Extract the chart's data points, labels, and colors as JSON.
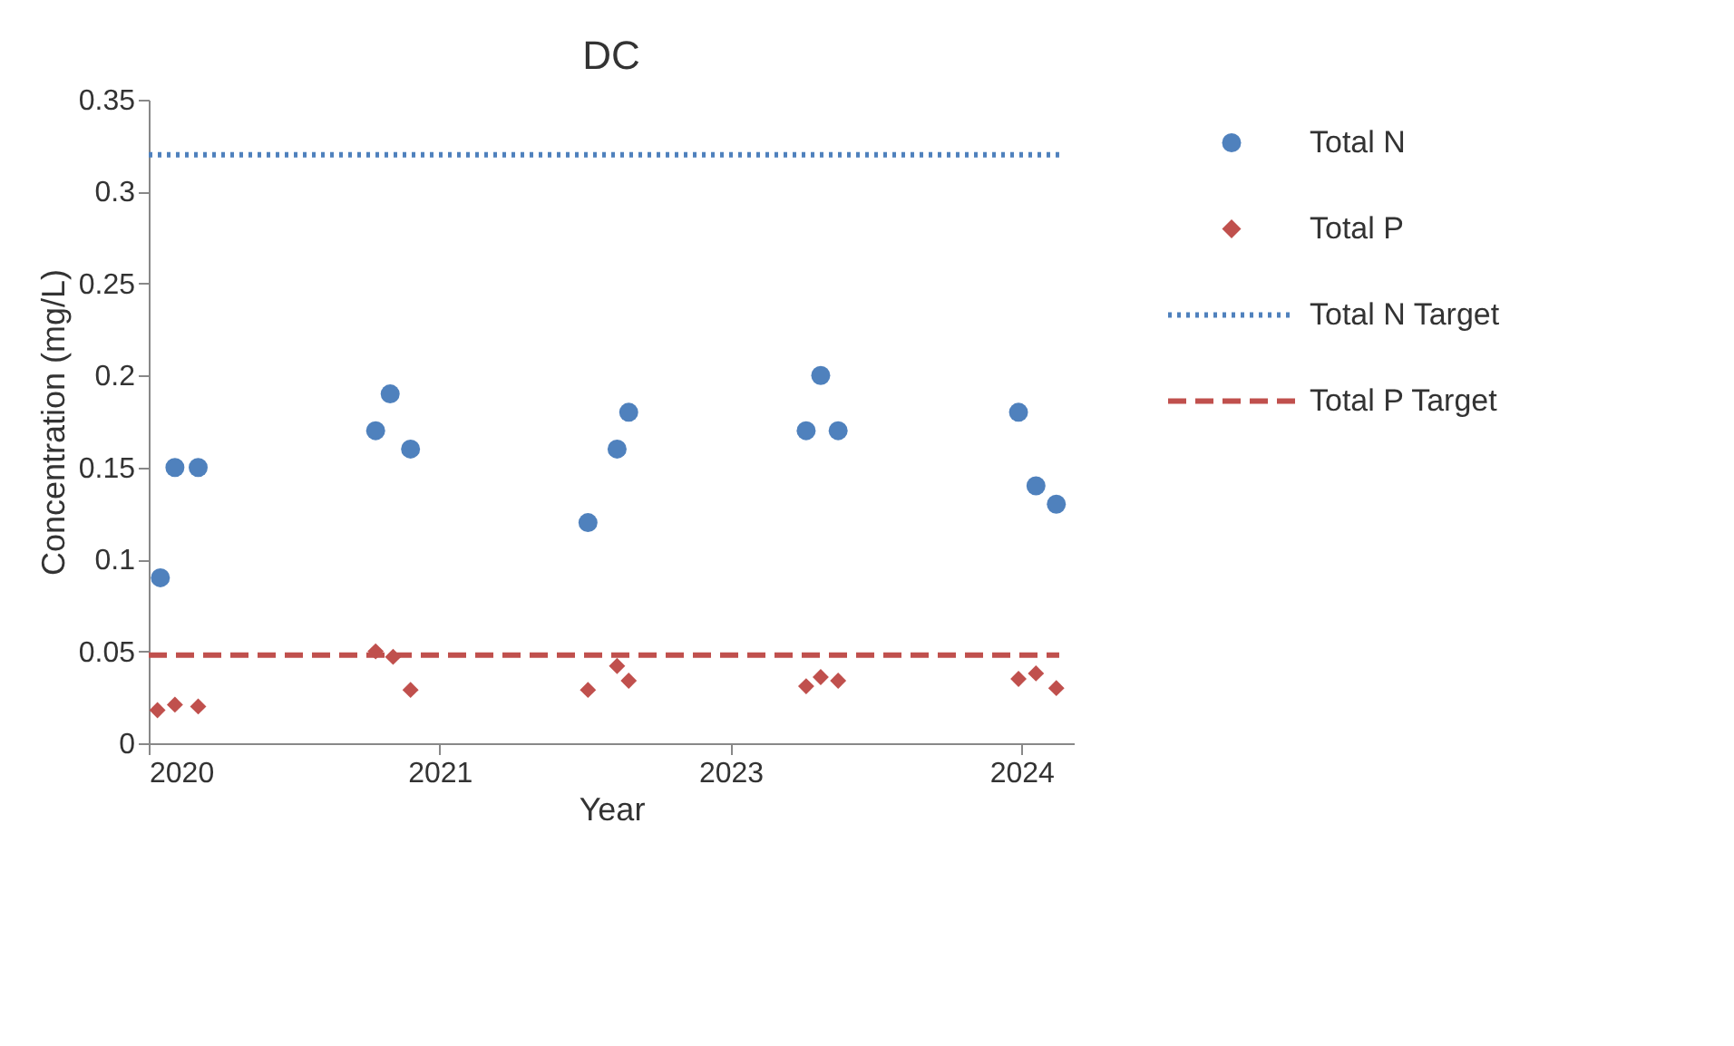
{
  "chart_data": {
    "type": "scatter",
    "title": "DC",
    "xlabel": "Year",
    "ylabel": "Concentration (mg/L)",
    "xlim": [
      "2020-06-01",
      "2024-10-08"
    ],
    "xticks": [
      {
        "value": "2020-06-01",
        "label": "2020"
      },
      {
        "value": "2021-10-14",
        "label": "2021"
      },
      {
        "value": "2023-02-26",
        "label": "2023"
      },
      {
        "value": "2024-07-10",
        "label": "2024"
      }
    ],
    "ylim": [
      0,
      0.35
    ],
    "yticks": [
      0,
      0.05,
      0.1,
      0.15,
      0.2,
      0.25,
      0.3,
      0.35
    ],
    "grid": false,
    "legend": "right",
    "series": [
      {
        "name": "Total N",
        "marker": "circle",
        "color": "#4f81bd",
        "x": [
          "2020-06-21",
          "2020-07-16",
          "2020-08-25",
          "2021-06-26",
          "2021-07-21",
          "2021-08-25",
          "2022-06-26",
          "2022-08-15",
          "2022-09-04",
          "2023-07-06",
          "2023-07-31",
          "2023-08-30",
          "2024-07-05",
          "2024-08-04",
          "2024-09-08"
        ],
        "values": [
          0.09,
          0.15,
          0.15,
          0.17,
          0.19,
          0.16,
          0.12,
          0.16,
          0.18,
          0.17,
          0.2,
          0.17,
          0.18,
          0.14,
          0.13
        ]
      },
      {
        "name": "Total P",
        "marker": "diamond",
        "color": "#c0504d",
        "x": [
          "2020-06-16",
          "2020-07-16",
          "2020-08-25",
          "2021-06-26",
          "2021-07-26",
          "2021-08-25",
          "2022-06-26",
          "2022-08-15",
          "2022-09-04",
          "2023-07-06",
          "2023-07-31",
          "2023-08-30",
          "2024-07-05",
          "2024-08-04",
          "2024-09-08"
        ],
        "values": [
          0.018,
          0.021,
          0.02,
          0.05,
          0.047,
          0.029,
          0.029,
          0.042,
          0.034,
          0.031,
          0.036,
          0.034,
          0.035,
          0.038,
          0.03
        ]
      },
      {
        "name": "Total N Target",
        "type": "line",
        "line_style": "dotted",
        "color": "#4f81bd",
        "x": [
          "2020-06-01",
          "2024-09-13"
        ],
        "values": [
          0.32,
          0.32
        ]
      },
      {
        "name": "Total P Target",
        "type": "line",
        "line_style": "dashed",
        "color": "#c0504d",
        "x": [
          "2020-06-01",
          "2024-09-13"
        ],
        "values": [
          0.048,
          0.048
        ]
      }
    ]
  }
}
